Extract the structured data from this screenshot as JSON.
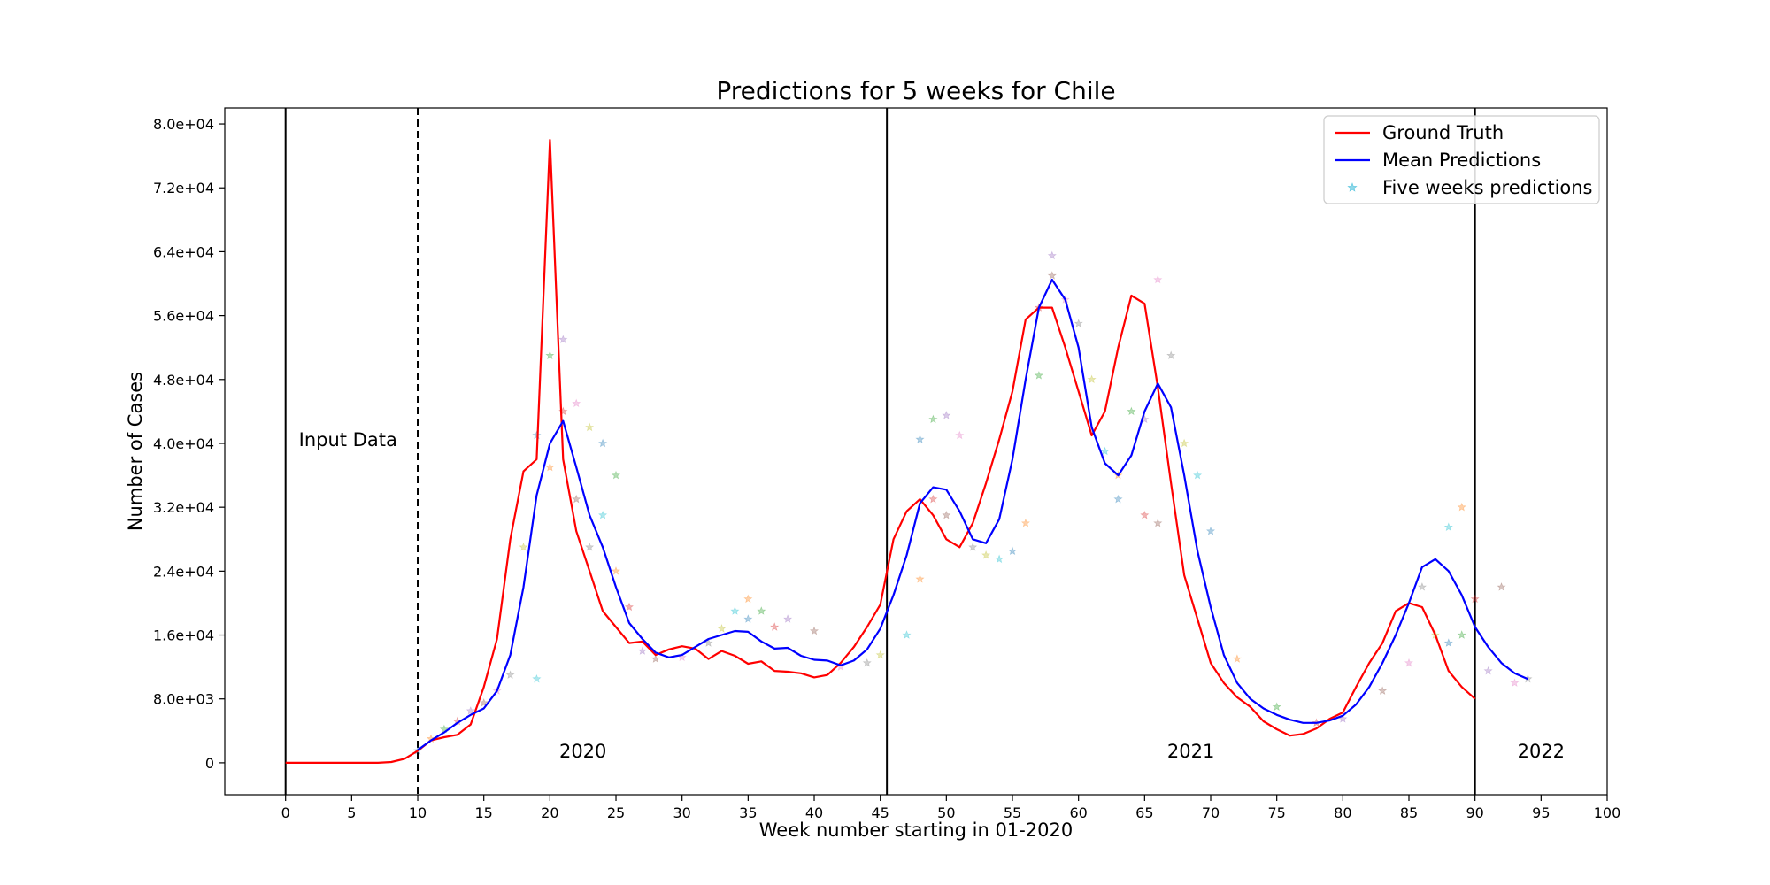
{
  "chart_data": {
    "type": "line",
    "title": "Predictions for 5 weeks for Chile",
    "xlabel": "Week number starting in 01-2020",
    "ylabel": "Number of Cases",
    "xlim": [
      -4.6,
      100
    ],
    "ylim": [
      -4000,
      82000
    ],
    "xticks": [
      0,
      5,
      10,
      15,
      20,
      25,
      30,
      35,
      40,
      45,
      50,
      55,
      60,
      65,
      70,
      75,
      80,
      85,
      90,
      95,
      100
    ],
    "yticks": [
      {
        "value": 0,
        "label": "0"
      },
      {
        "value": 8000,
        "label": "8.0e+03"
      },
      {
        "value": 16000,
        "label": "1.6e+04"
      },
      {
        "value": 24000,
        "label": "2.4e+04"
      },
      {
        "value": 32000,
        "label": "3.2e+04"
      },
      {
        "value": 40000,
        "label": "4.0e+04"
      },
      {
        "value": 48000,
        "label": "4.8e+04"
      },
      {
        "value": 56000,
        "label": "5.6e+04"
      },
      {
        "value": 64000,
        "label": "6.4e+04"
      },
      {
        "value": 72000,
        "label": "7.2e+04"
      },
      {
        "value": 80000,
        "label": "8.0e+04"
      }
    ],
    "grid": false,
    "legend_position": "top-right",
    "series": [
      {
        "name": "Ground Truth",
        "color": "#ff0000",
        "x": [
          0,
          1,
          2,
          3,
          4,
          5,
          6,
          7,
          8,
          9,
          10,
          11,
          12,
          13,
          14,
          15,
          16,
          17,
          18,
          19,
          20,
          21,
          22,
          23,
          24,
          25,
          26,
          27,
          28,
          29,
          30,
          31,
          32,
          33,
          34,
          35,
          36,
          37,
          38,
          39,
          40,
          41,
          42,
          43,
          44,
          45,
          46,
          47,
          48,
          49,
          50,
          51,
          52,
          53,
          54,
          55,
          56,
          57,
          58,
          59,
          60,
          61,
          62,
          63,
          64,
          65,
          66,
          67,
          68,
          69,
          70,
          71,
          72,
          73,
          74,
          75,
          76,
          77,
          78,
          79,
          80,
          81,
          82,
          83,
          84,
          85,
          86,
          87,
          88,
          89,
          90
        ],
        "y": [
          0,
          0,
          0,
          0,
          0,
          0,
          0,
          0,
          100,
          500,
          1500,
          2800,
          3200,
          3500,
          4800,
          9500,
          15500,
          28000,
          36500,
          38000,
          78000,
          38000,
          29000,
          24000,
          19000,
          17000,
          15000,
          15200,
          13500,
          14200,
          14600,
          14300,
          13000,
          14000,
          13400,
          12400,
          12700,
          11500,
          11400,
          11200,
          10700,
          11000,
          12500,
          14500,
          17000,
          19800,
          28000,
          31500,
          33000,
          31000,
          28000,
          27000,
          30000,
          35000,
          40500,
          46500,
          55500,
          57000,
          57000,
          52000,
          46500,
          41000,
          44000,
          52000,
          58500,
          57500,
          47000,
          35000,
          23500,
          18000,
          12500,
          10000,
          8200,
          7000,
          5200,
          4200,
          3400,
          3600,
          4300,
          5500,
          6300,
          9500,
          12500,
          15000,
          19000,
          20000,
          19500,
          16000,
          11500,
          9500,
          8000
        ]
      },
      {
        "name": "Mean Predictions",
        "color": "#0000ff",
        "x": [
          10,
          11,
          12,
          13,
          14,
          15,
          16,
          17,
          18,
          19,
          20,
          21,
          22,
          23,
          24,
          25,
          26,
          27,
          28,
          29,
          30,
          31,
          32,
          33,
          34,
          35,
          36,
          37,
          38,
          39,
          40,
          41,
          42,
          43,
          44,
          45,
          46,
          47,
          48,
          49,
          50,
          51,
          52,
          53,
          54,
          55,
          56,
          57,
          58,
          59,
          60,
          61,
          62,
          63,
          64,
          65,
          66,
          67,
          68,
          69,
          70,
          71,
          72,
          73,
          74,
          75,
          76,
          77,
          78,
          79,
          80,
          81,
          82,
          83,
          84,
          85,
          86,
          87,
          88,
          89,
          90,
          91,
          92,
          93,
          94
        ],
        "y": [
          1600,
          2800,
          3800,
          5000,
          6000,
          6800,
          9000,
          13500,
          22000,
          33500,
          40000,
          42800,
          37000,
          31000,
          27000,
          22000,
          17500,
          15500,
          13800,
          13200,
          13500,
          14500,
          15500,
          16000,
          16500,
          16400,
          15200,
          14300,
          14400,
          13400,
          12900,
          12800,
          12200,
          12800,
          14200,
          16800,
          21000,
          26000,
          32500,
          34500,
          34200,
          31500,
          28000,
          27500,
          30500,
          38000,
          48000,
          57000,
          60500,
          58000,
          52000,
          42000,
          37500,
          36000,
          38500,
          44000,
          47500,
          44500,
          36000,
          26500,
          19500,
          13500,
          10000,
          8000,
          6800,
          6000,
          5400,
          5000,
          5000,
          5300,
          5900,
          7300,
          9500,
          12500,
          16000,
          20000,
          24500,
          25500,
          24000,
          21000,
          17000,
          14500,
          12500,
          11200,
          10500
        ]
      },
      {
        "name": "Five weeks predictions",
        "color": "#5fc8e0",
        "x": [
          10,
          11,
          12,
          13,
          14,
          15,
          16,
          17,
          18,
          19,
          19,
          20,
          20,
          21,
          21,
          22,
          22,
          23,
          23,
          24,
          24,
          25,
          25,
          26,
          27,
          28,
          30,
          32,
          33,
          34,
          35,
          35,
          36,
          37,
          38,
          40,
          42,
          44,
          45,
          47,
          48,
          48,
          49,
          49,
          50,
          50,
          51,
          52,
          53,
          54,
          55,
          56,
          57,
          57,
          58,
          58,
          59,
          60,
          61,
          62,
          63,
          63,
          64,
          65,
          65,
          66,
          66,
          67,
          68,
          69,
          70,
          72,
          75,
          78,
          80,
          83,
          85,
          86,
          87,
          88,
          88,
          89,
          89,
          90,
          91,
          92,
          93,
          94
        ],
        "y": [
          1500,
          3000,
          4200,
          5200,
          6500,
          7500,
          9000,
          11000,
          27000,
          10500,
          41000,
          37000,
          51000,
          44000,
          53000,
          33000,
          45000,
          27000,
          42000,
          31000,
          40000,
          24000,
          36000,
          19500,
          14000,
          13000,
          13200,
          15000,
          16800,
          19000,
          18000,
          20500,
          19000,
          17000,
          18000,
          16500,
          12000,
          12500,
          13500,
          16000,
          40500,
          23000,
          43000,
          33000,
          43500,
          31000,
          41000,
          27000,
          26000,
          25500,
          26500,
          30000,
          48500,
          57000,
          63500,
          61000,
          58000,
          55000,
          48000,
          39000,
          33000,
          36000,
          44000,
          31000,
          43000,
          30000,
          60500,
          51000,
          40000,
          36000,
          29000,
          13000,
          7000,
          5000,
          5500,
          9000,
          12500,
          22000,
          16000,
          29500,
          15000,
          32000,
          16000,
          20500,
          11500,
          22000,
          10000,
          10500
        ],
        "colors": [
          "#1f77b4",
          "#ff7f0e",
          "#2ca02c",
          "#d62728",
          "#9467bd",
          "#8c564b",
          "#e377c2",
          "#7f7f7f",
          "#bcbd22",
          "#17becf"
        ]
      }
    ],
    "annotations": [
      {
        "text": "Input Data",
        "x": 1,
        "y": 39000
      },
      {
        "text": "2020",
        "x": 22.5,
        "y": 0
      },
      {
        "text": "2021",
        "x": 68.5,
        "y": 0
      },
      {
        "text": "2022",
        "x": 95,
        "y": 0
      }
    ],
    "vertical_lines": [
      {
        "x": 0,
        "style": "solid"
      },
      {
        "x": 10,
        "style": "dashed"
      },
      {
        "x": 45.5,
        "style": "solid"
      },
      {
        "x": 90,
        "style": "solid"
      }
    ]
  }
}
